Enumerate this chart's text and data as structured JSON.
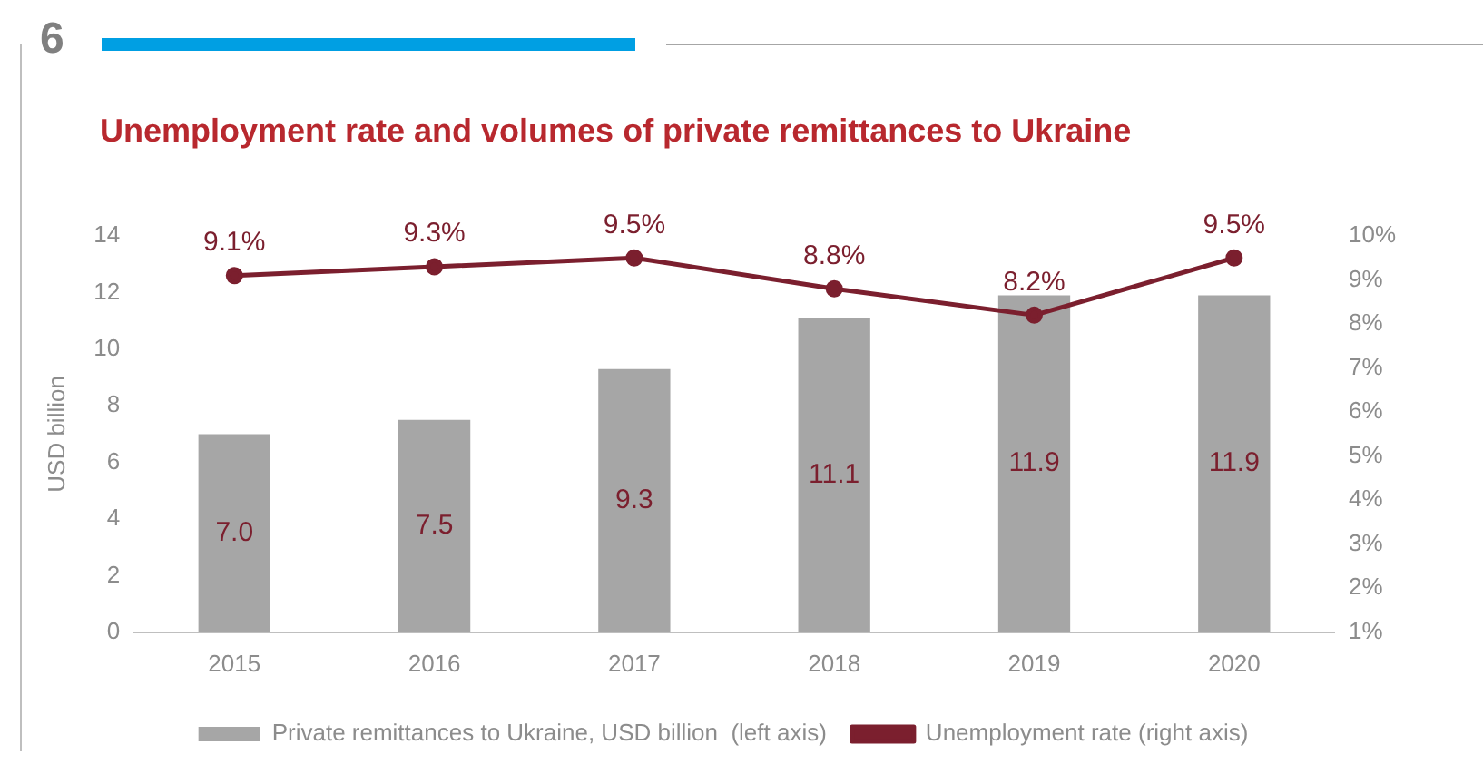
{
  "chart_data": {
    "type": "bar",
    "title": "Unemployment rate and volumes of private remittances to Ukraine",
    "ylabel": "USD billion",
    "categories": [
      "2015",
      "2016",
      "2017",
      "2018",
      "2019",
      "2020"
    ],
    "series": [
      {
        "name": "Private remittances to Ukraine, USD billion  (left axis)",
        "color": "#a6a6a6",
        "values": [
          7.0,
          7.5,
          9.3,
          11.1,
          11.9,
          11.9
        ],
        "value_labels": [
          "7.0",
          "7.5",
          "9.3",
          "11.1",
          "11.9",
          "11.9"
        ]
      },
      {
        "type": "line",
        "axis": "y2",
        "name": "Unemployment rate (right axis)",
        "color": "#7b1f2e",
        "values": [
          9.1,
          9.3,
          9.5,
          8.8,
          8.2,
          9.5
        ],
        "value_labels": [
          "9.1%",
          "9.3%",
          "9.5%",
          "8.8%",
          "8.2%",
          "9.5%"
        ],
        "marker": "circle"
      }
    ],
    "ylim": [
      0,
      14
    ],
    "yticks": [
      0,
      2,
      4,
      6,
      8,
      10,
      12,
      14
    ],
    "y2lim": [
      1,
      10
    ],
    "y2ticks": [
      {
        "value": 1,
        "label": "1%"
      },
      {
        "value": 2,
        "label": "2%"
      },
      {
        "value": 3,
        "label": "3%"
      },
      {
        "value": 4,
        "label": "4%"
      },
      {
        "value": 5,
        "label": "5%"
      },
      {
        "value": 6,
        "label": "6%"
      },
      {
        "value": 7,
        "label": "7%"
      },
      {
        "value": 8,
        "label": "8%"
      },
      {
        "value": 9,
        "label": "9%"
      },
      {
        "value": 10,
        "label": "10%"
      }
    ],
    "grid": false,
    "legend": "bottom",
    "annotations": [
      "6"
    ]
  }
}
